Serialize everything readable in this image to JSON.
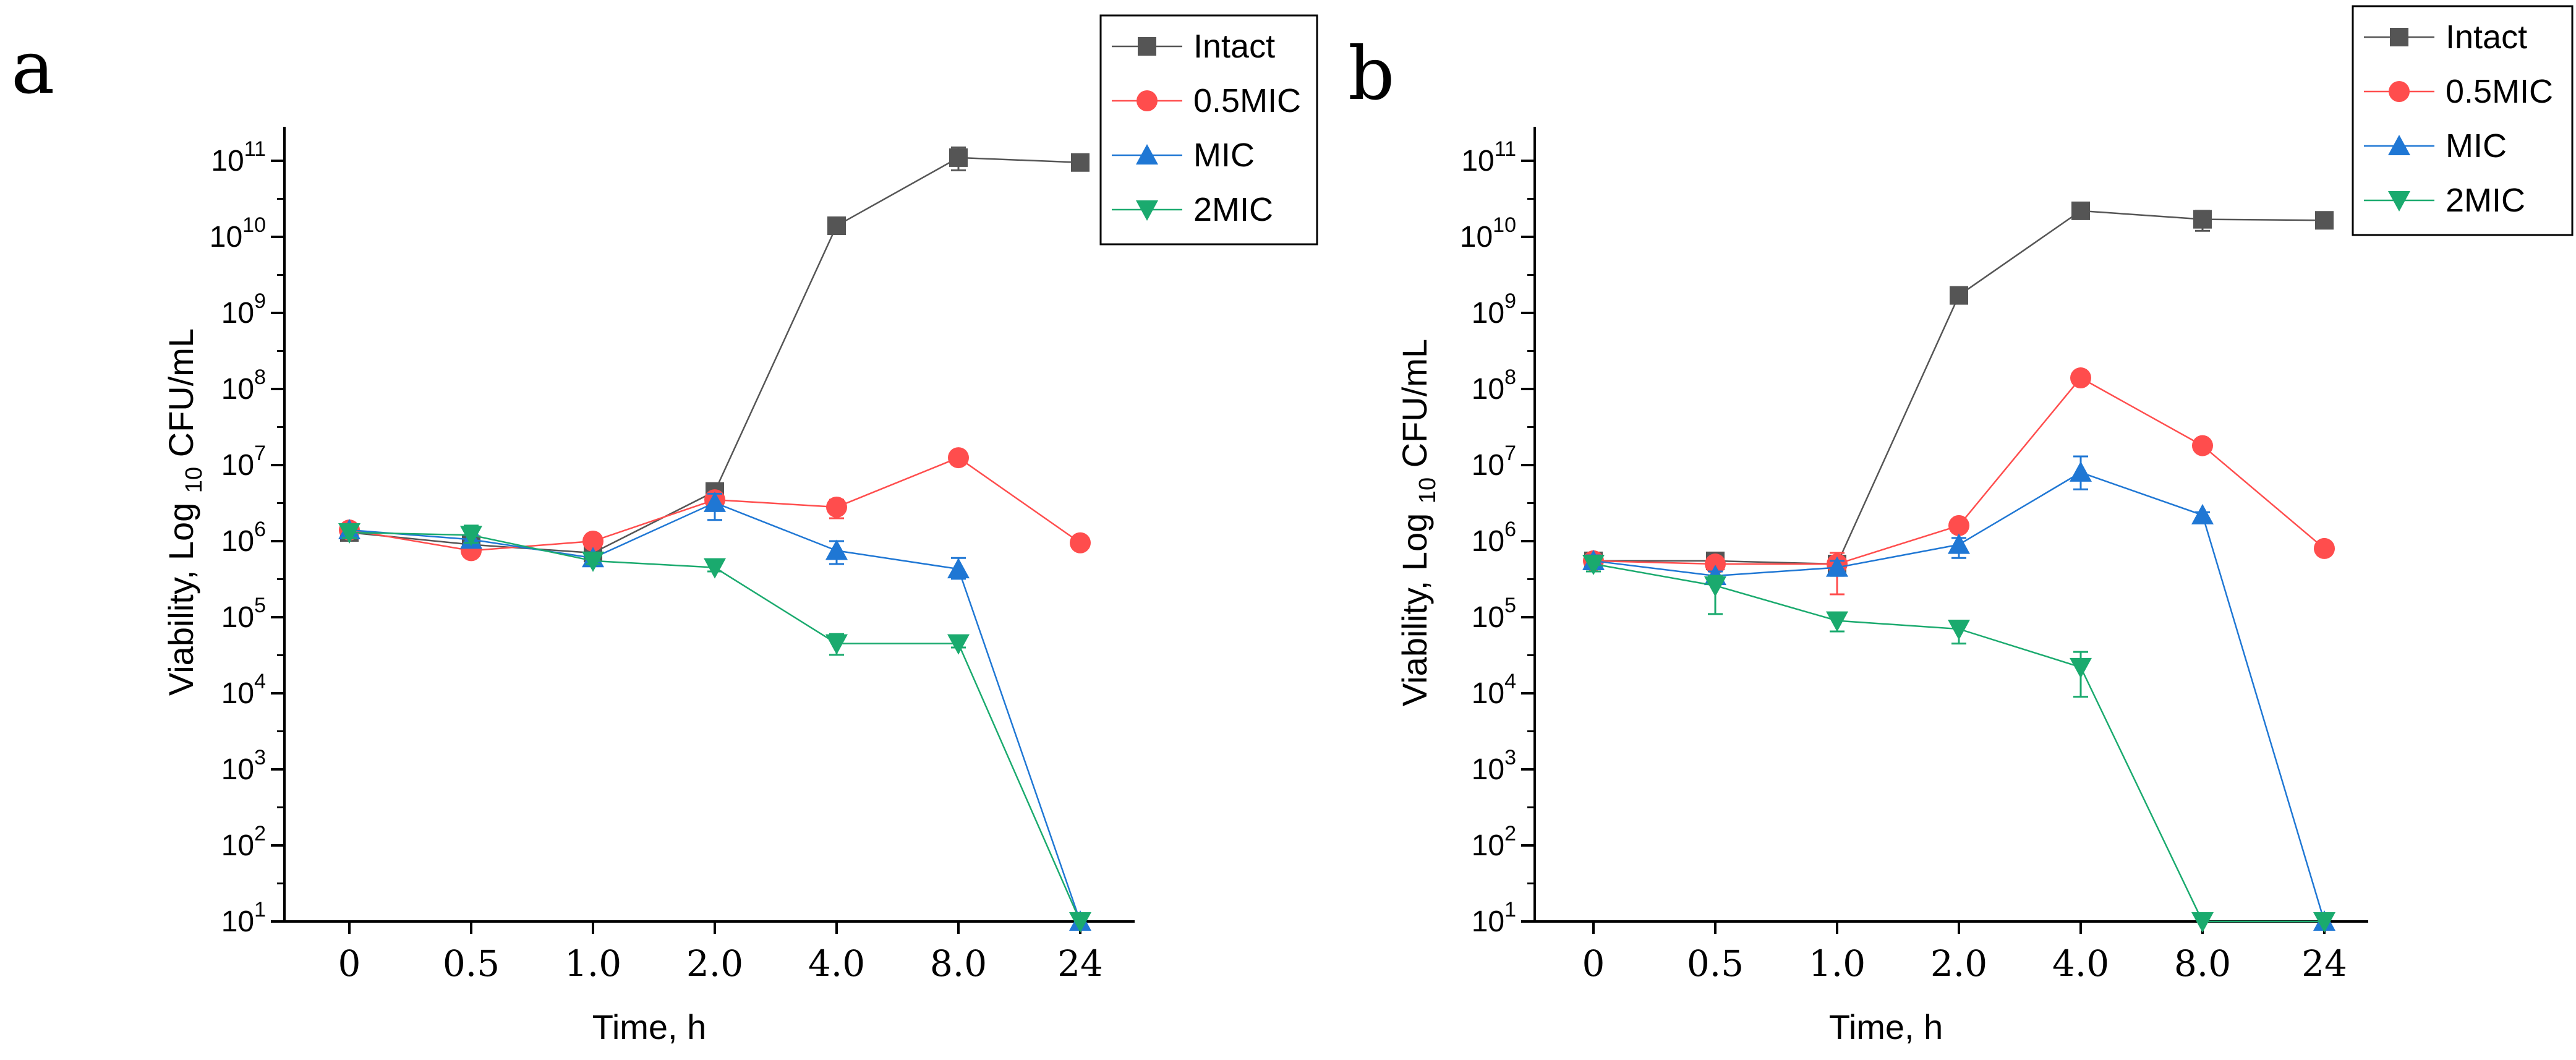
{
  "figure": {
    "panels": [
      "a",
      "b"
    ]
  },
  "chart_data": [
    {
      "panel": "a",
      "type": "line",
      "yscale": "log",
      "xlabel": "Time, h",
      "ylabel": "Viability, Log 10 CFU/mL",
      "ylabel_parts": {
        "pre": "Viability, Log ",
        "sub": "10",
        "post": " CFU/mL"
      },
      "categories": [
        "0",
        "0.5",
        "1.0",
        "2.0",
        "4.0",
        "8.0",
        "24"
      ],
      "ylim_exp": [
        1,
        11
      ],
      "ytick_exponents": [
        1,
        2,
        3,
        4,
        5,
        6,
        7,
        8,
        9,
        10,
        11
      ],
      "legend_position": "top-right",
      "series": [
        {
          "name": "Intact",
          "color": "#555555",
          "marker": "square",
          "values": [
            1300000.0,
            900000.0,
            700000.0,
            4500000.0,
            14000000000.0,
            110000000000.0,
            95000000000.0
          ],
          "err_lo": [
            1100000.0,
            700000.0,
            600000.0,
            3500000.0,
            13000000000.0,
            75000000000.0,
            90000000000.0
          ],
          "err_hi": [
            1500000.0,
            1100000.0,
            800000.0,
            5500000.0,
            15000000000.0,
            150000000000.0,
            100000000000.0
          ]
        },
        {
          "name": "0.5MIC",
          "color": "#ff4d4d",
          "marker": "circle",
          "values": [
            1400000.0,
            750000.0,
            1000000.0,
            3500000.0,
            2800000.0,
            12500000.0,
            950000.0
          ],
          "err_lo": [
            1200000.0,
            650000.0,
            900000.0,
            3000000.0,
            2000000.0,
            11000000.0,
            850000.0
          ],
          "err_hi": [
            1600000.0,
            850000.0,
            1100000.0,
            4000000.0,
            3500000.0,
            14000000.0,
            1050000.0
          ]
        },
        {
          "name": "MIC",
          "color": "#1f77d4",
          "marker": "triangle-up",
          "values": [
            1400000.0,
            1050000.0,
            600000.0,
            3200000.0,
            750000.0,
            430000.0,
            10
          ],
          "err_lo": [
            1200000.0,
            900000.0,
            500000.0,
            1900000.0,
            500000.0,
            320000.0,
            10
          ],
          "err_hi": [
            1600000.0,
            1200000.0,
            700000.0,
            4200000.0,
            1000000.0,
            600000.0,
            10
          ]
        },
        {
          "name": "2MIC",
          "color": "#1aaa6e",
          "marker": "triangle-down",
          "values": [
            1300000.0,
            1200000.0,
            550000.0,
            450000.0,
            45000.0,
            45000.0,
            10
          ],
          "err_lo": [
            1100000.0,
            950000.0,
            500000.0,
            400000.0,
            32000.0,
            40000.0,
            10
          ],
          "err_hi": [
            1500000.0,
            1600000.0,
            600000.0,
            500000.0,
            60000.0,
            50000.0,
            10
          ]
        }
      ]
    },
    {
      "panel": "b",
      "type": "line",
      "yscale": "log",
      "xlabel": "Time, h",
      "ylabel": "Viability, Log 10 CFU/mL",
      "ylabel_parts": {
        "pre": "Viability, Log ",
        "sub": "10",
        "post": " CFU/mL"
      },
      "categories": [
        "0",
        "0.5",
        "1.0",
        "2.0",
        "4.0",
        "8.0",
        "24"
      ],
      "ylim_exp": [
        1,
        11
      ],
      "ytick_exponents": [
        1,
        2,
        3,
        4,
        5,
        6,
        7,
        8,
        9,
        10,
        11
      ],
      "legend_position": "top-right",
      "series": [
        {
          "name": "Intact",
          "color": "#555555",
          "marker": "square",
          "values": [
            550000.0,
            550000.0,
            500000.0,
            1700000000.0,
            22000000000.0,
            17000000000.0,
            16500000000.0
          ],
          "err_lo": [
            450000.0,
            450000.0,
            400000.0,
            1500000000.0,
            18000000000.0,
            12000000000.0,
            15000000000.0
          ],
          "err_hi": [
            650000.0,
            650000.0,
            600000.0,
            1900000000.0,
            26000000000.0,
            22000000000.0,
            18000000000.0
          ]
        },
        {
          "name": "0.5MIC",
          "color": "#ff4d4d",
          "marker": "circle",
          "values": [
            550000.0,
            500000.0,
            500000.0,
            1600000.0,
            140000000.0,
            18000000.0,
            800000.0
          ],
          "err_lo": [
            450000.0,
            400000.0,
            200000.0,
            1300000.0,
            120000000.0,
            16000000.0,
            700000.0
          ],
          "err_hi": [
            650000.0,
            600000.0,
            700000.0,
            1900000.0,
            160000000.0,
            20000000.0,
            900000.0
          ]
        },
        {
          "name": "MIC",
          "color": "#1f77d4",
          "marker": "triangle-up",
          "values": [
            550000.0,
            350000.0,
            450000.0,
            900000.0,
            8000000.0,
            2200000.0,
            10
          ],
          "err_lo": [
            450000.0,
            300000.0,
            350000.0,
            600000.0,
            4800000.0,
            2000000.0,
            10
          ],
          "err_hi": [
            650000.0,
            400000.0,
            550000.0,
            1100000.0,
            13000000.0,
            2400000.0,
            10
          ]
        },
        {
          "name": "2MIC",
          "color": "#1aaa6e",
          "marker": "triangle-down",
          "values": [
            500000.0,
            260000.0,
            90000.0,
            70000.0,
            22000.0,
            10,
            10
          ],
          "err_lo": [
            400000.0,
            110000.0,
            65000.0,
            45000.0,
            9000.0,
            10,
            10
          ],
          "err_hi": [
            600000.0,
            350000.0,
            110000.0,
            90000.0,
            35000.0,
            10,
            10
          ]
        }
      ]
    }
  ]
}
